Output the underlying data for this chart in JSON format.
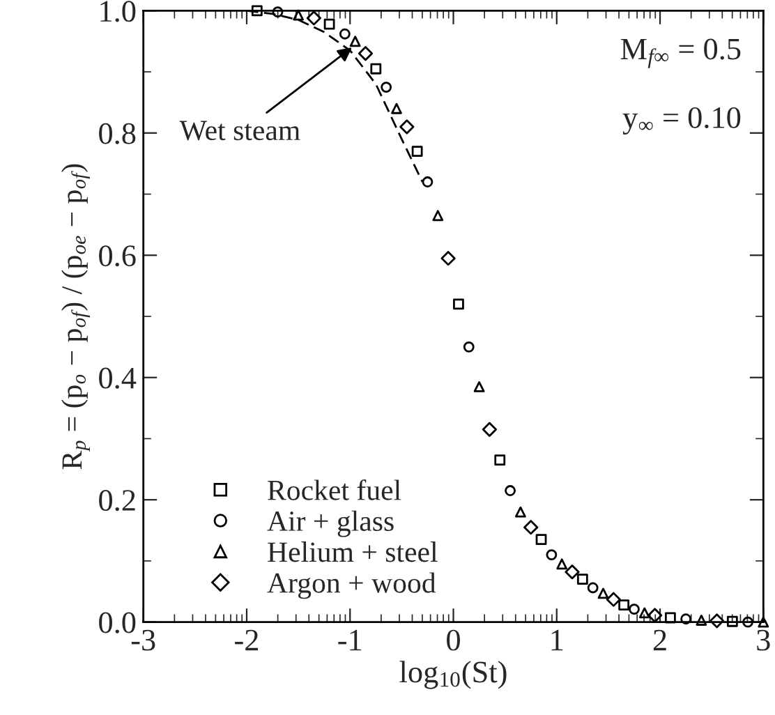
{
  "chart_data": {
    "type": "scatter",
    "xlabel": "log$_{10}$(St)",
    "ylabel": "R$_{p}$ = (p$_{o}$ − p$_{of}$) / (p$_{oe}$ − p$_{of}$)",
    "xlim": [
      -3,
      3
    ],
    "ylim": [
      0,
      1
    ],
    "xticks": [
      {
        "value": -3,
        "label": "-3"
      },
      {
        "value": -2,
        "label": "-2"
      },
      {
        "value": -1,
        "label": "-1"
      },
      0,
      1,
      2,
      3
    ],
    "yticks": [
      {
        "value": 0,
        "label": "0.0"
      },
      0.2,
      0.4,
      0.6,
      0.8,
      {
        "value": 1,
        "label": "1.0"
      }
    ],
    "grid": false,
    "legend": "bottom left",
    "annotations": [
      {
        "text": "Wet steam",
        "x": -0.98,
        "y": 0.94
      },
      "M$_{f∞}$ = 0.5",
      "y$_{∞}$ = 0.10"
    ],
    "series": [
      {
        "name": "Rocket fuel",
        "color": "#000000",
        "marker": "square",
        "x": [
          -1.9,
          -1.2,
          -0.75,
          -0.35,
          0.05,
          0.45,
          0.85,
          1.25,
          1.65,
          2.1,
          2.7
        ],
        "values": [
          1.0,
          0.978,
          0.905,
          0.77,
          0.52,
          0.265,
          0.135,
          0.07,
          0.028,
          0.007,
          0.001
        ]
      },
      {
        "name": "Air + glass",
        "color": "#000000",
        "marker": "circle",
        "x": [
          -1.7,
          -1.05,
          -0.65,
          -0.25,
          0.15,
          0.55,
          0.95,
          1.35,
          1.75,
          2.25,
          2.85
        ],
        "values": [
          0.998,
          0.962,
          0.875,
          0.72,
          0.45,
          0.215,
          0.11,
          0.056,
          0.021,
          0.005,
          0.0
        ]
      },
      {
        "name": "Helium + steel",
        "color": "#000000",
        "marker": "triangle",
        "x": [
          -1.5,
          -0.95,
          -0.55,
          -0.15,
          0.25,
          0.65,
          1.05,
          1.45,
          1.85,
          2.4,
          3.0
        ],
        "values": [
          0.993,
          0.95,
          0.84,
          0.665,
          0.385,
          0.18,
          0.095,
          0.047,
          0.015,
          0.003,
          0.0
        ]
      },
      {
        "name": "Argon + wood",
        "color": "#000000",
        "marker": "diamond",
        "x": [
          -1.35,
          -0.85,
          -0.45,
          -0.05,
          0.35,
          0.75,
          1.15,
          1.55,
          1.95,
          2.55
        ],
        "values": [
          0.988,
          0.93,
          0.81,
          0.595,
          0.315,
          0.155,
          0.082,
          0.037,
          0.011,
          0.002
        ]
      },
      {
        "type": "line",
        "color": "#000000",
        "line_style": "dashed",
        "x": [
          -2.0,
          -1.75,
          -1.5,
          -1.25,
          -1.0,
          -0.75,
          -0.5,
          -0.3
        ],
        "values": [
          1.0,
          0.995,
          0.985,
          0.965,
          0.935,
          0.88,
          0.79,
          0.72
        ]
      }
    ]
  }
}
